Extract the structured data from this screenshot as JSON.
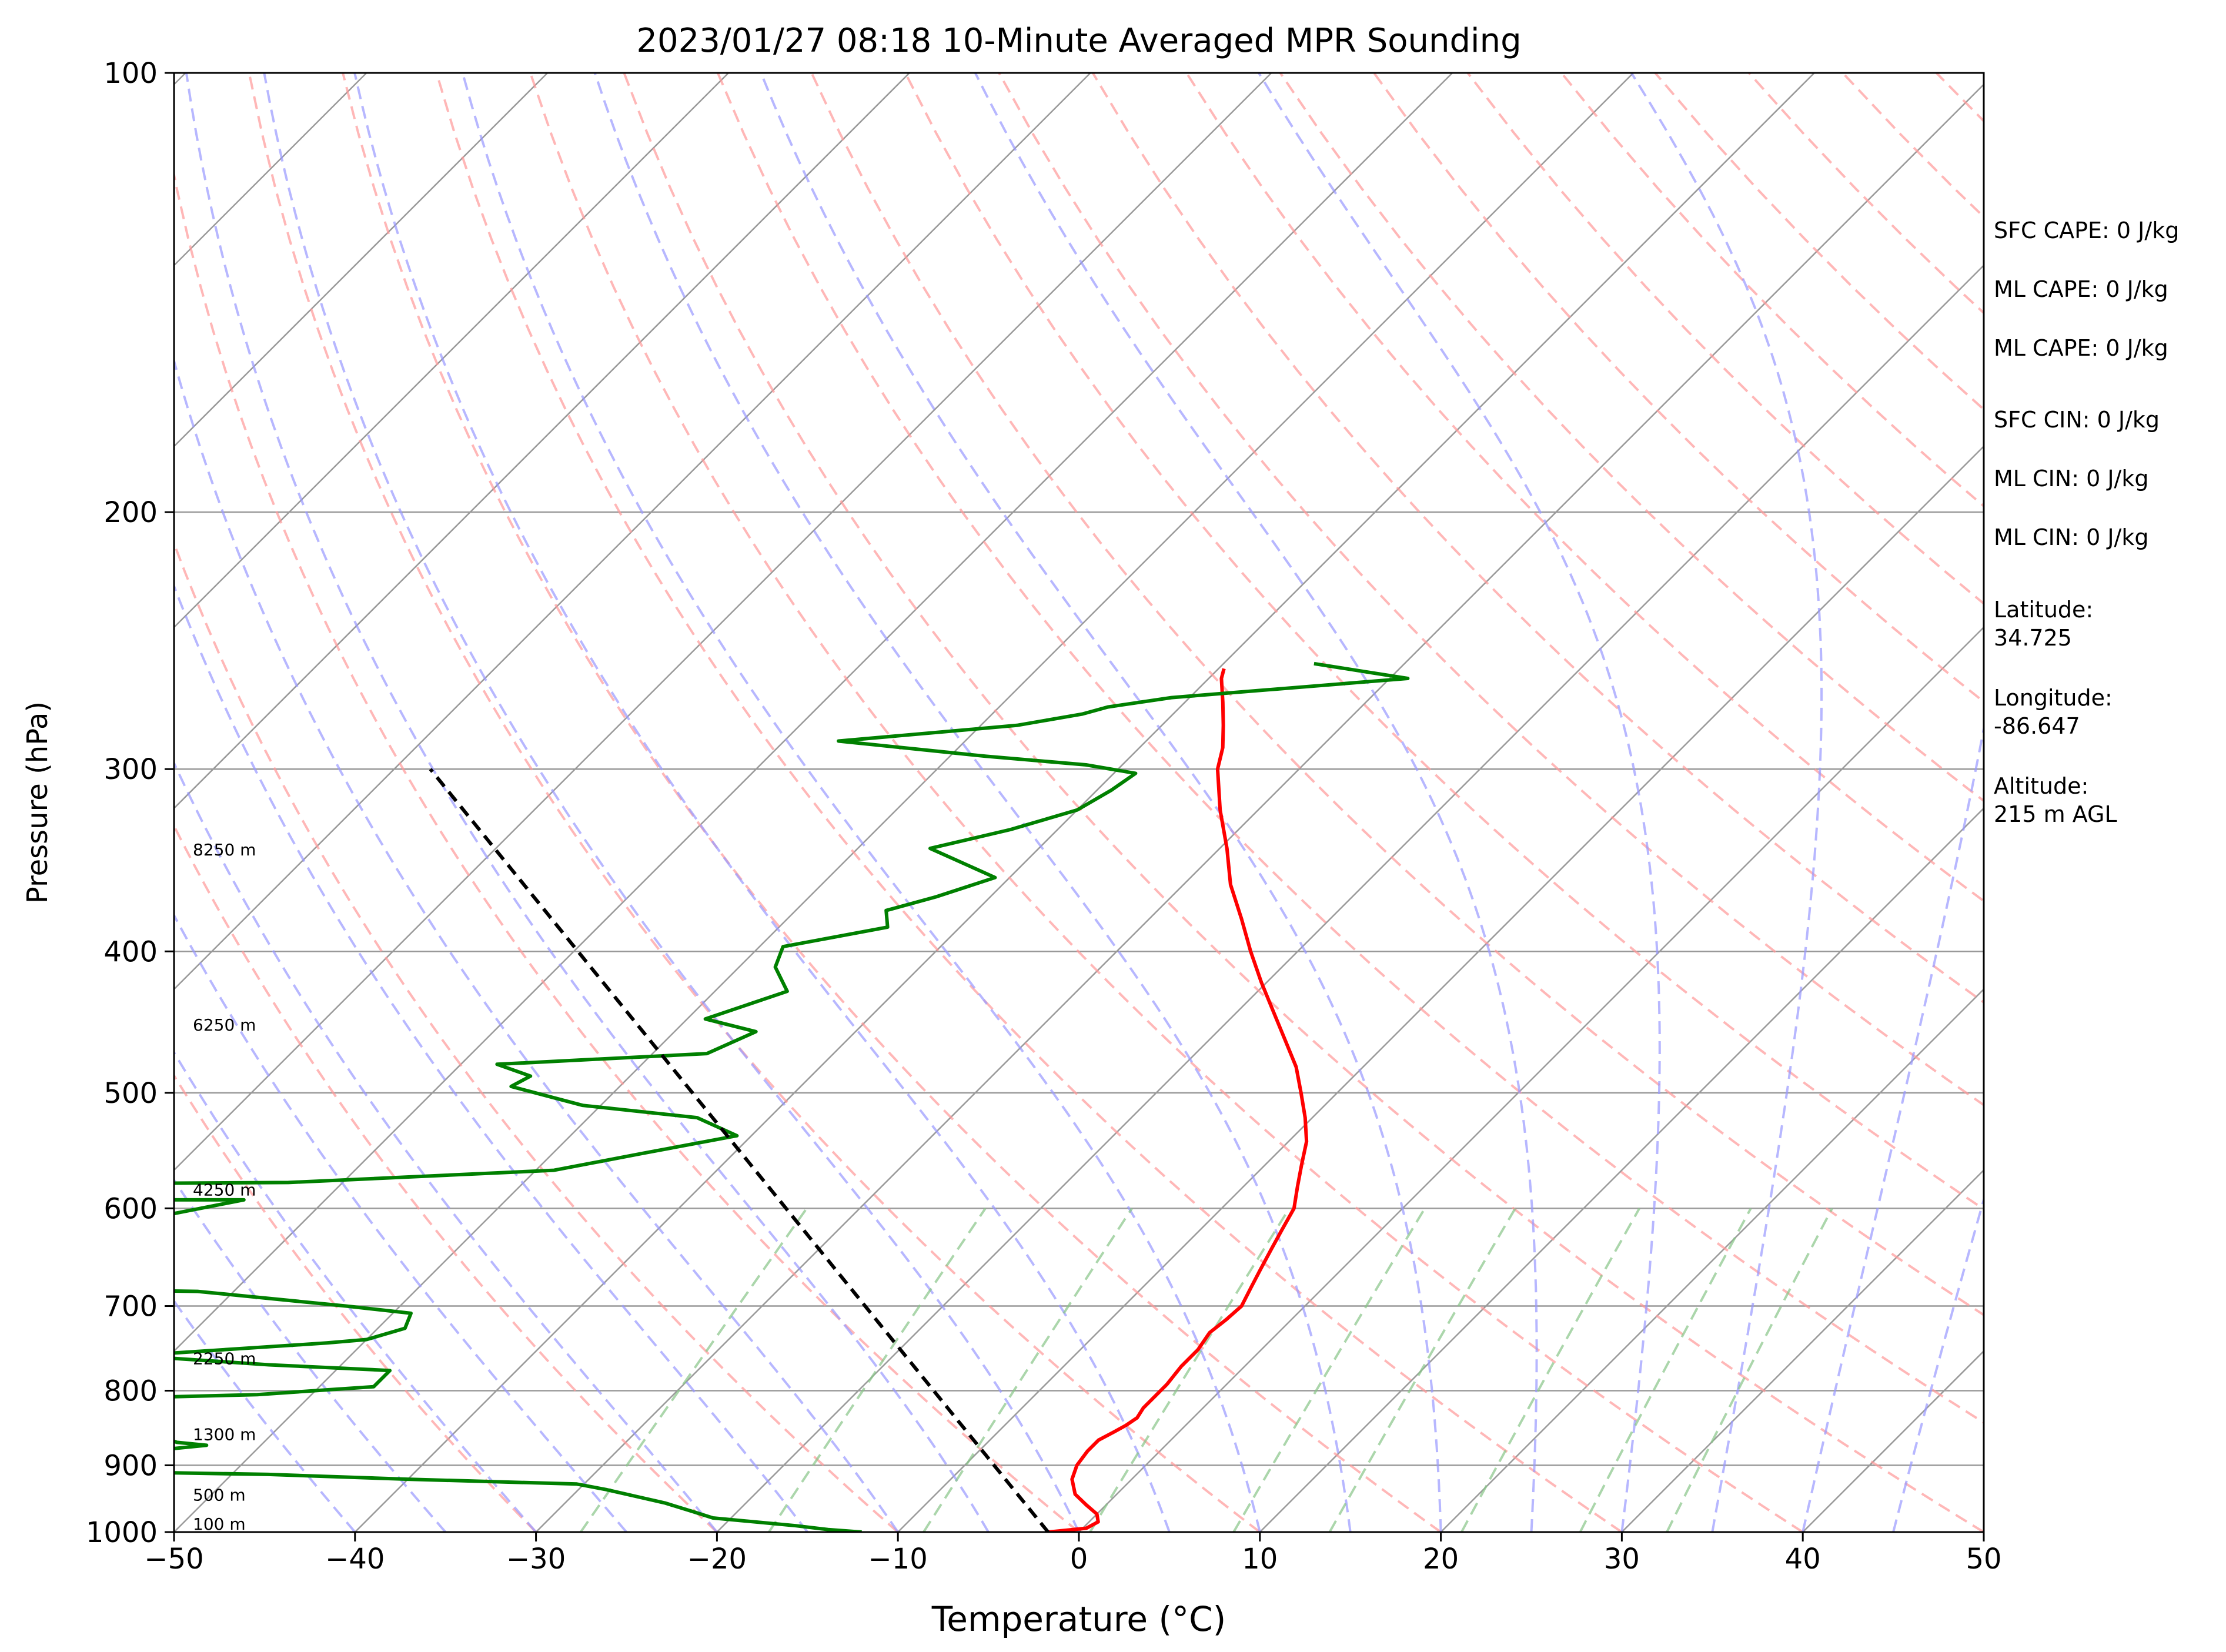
{
  "chart_data": {
    "type": "skew-t",
    "title": "2023/01/27 08:18 10-Minute Averaged MPR Sounding",
    "xlabel": "Temperature (°C)",
    "ylabel": "Pressure (hPa)",
    "xlim": [
      -50,
      50
    ],
    "ylim": [
      1000,
      100
    ],
    "y_scale": "log",
    "grid": true,
    "x_ticks": [
      "−50",
      "−40",
      "−30",
      "−20",
      "−10",
      "0",
      "10",
      "20",
      "30",
      "40",
      "50"
    ],
    "y_ticks": [
      "100",
      "200",
      "300",
      "400",
      "500",
      "600",
      "700",
      "800",
      "900",
      "1000"
    ],
    "height_labels": [
      {
        "label": "100 m",
        "p": 1000
      },
      {
        "label": "500 m",
        "p": 955
      },
      {
        "label": "1300 m",
        "p": 868
      },
      {
        "label": "2250 m",
        "p": 770
      },
      {
        "label": "4250 m",
        "p": 590
      },
      {
        "label": "6250 m",
        "p": 455
      },
      {
        "label": "8250 m",
        "p": 345
      }
    ],
    "series": [
      {
        "color": "#ff0000",
        "points": [
          [
            1000,
            -1.7
          ],
          [
            994,
            0.2
          ],
          [
            984,
            0.5
          ],
          [
            972,
            0
          ],
          [
            958,
            -1.1
          ],
          [
            942,
            -2.3
          ],
          [
            920,
            -3.3
          ],
          [
            900,
            -3.8
          ],
          [
            880,
            -4
          ],
          [
            865,
            -4
          ],
          [
            854,
            -3.6
          ],
          [
            845,
            -3.3
          ],
          [
            835,
            -3.1
          ],
          [
            822,
            -3.3
          ],
          [
            808,
            -3.3
          ],
          [
            792,
            -3.3
          ],
          [
            770,
            -3.5
          ],
          [
            750,
            -3.5
          ],
          [
            730,
            -3.8
          ],
          [
            715,
            -3.6
          ],
          [
            700,
            -3.5
          ],
          [
            680,
            -4
          ],
          [
            660,
            -4.5
          ],
          [
            640,
            -5
          ],
          [
            620,
            -5.5
          ],
          [
            600,
            -6
          ],
          [
            580,
            -7
          ],
          [
            560,
            -8
          ],
          [
            540,
            -9
          ],
          [
            520,
            -10.4
          ],
          [
            500,
            -12
          ],
          [
            480,
            -13.7
          ],
          [
            460,
            -15.8
          ],
          [
            440,
            -18
          ],
          [
            420,
            -20.3
          ],
          [
            400,
            -22.6
          ],
          [
            380,
            -24.9
          ],
          [
            360,
            -27.4
          ],
          [
            340,
            -29.6
          ],
          [
            320,
            -32.1
          ],
          [
            300,
            -34.5
          ],
          [
            290,
            -35.4
          ],
          [
            280,
            -36.6
          ],
          [
            270,
            -37.9
          ],
          [
            260,
            -39.3
          ],
          [
            256,
            -39.7
          ]
        ]
      },
      {
        "color": "#008000",
        "points": [
          [
            1000,
            -12
          ],
          [
            996,
            -14
          ],
          [
            990,
            -16
          ],
          [
            978,
            -21
          ],
          [
            968,
            -22.5
          ],
          [
            955,
            -24.5
          ],
          [
            945,
            -26.5
          ],
          [
            935,
            -28.5
          ],
          [
            927,
            -30.4
          ],
          [
            920,
            -40
          ],
          [
            913,
            -48
          ],
          [
            908,
            -60
          ],
          [
            890,
            -59.5
          ],
          [
            872,
            -53
          ],
          [
            868,
            -54.8
          ],
          [
            860,
            -56
          ],
          [
            845,
            -57
          ],
          [
            838,
            -58
          ],
          [
            822,
            -60.5
          ],
          [
            808,
            -58
          ],
          [
            805,
            -53
          ],
          [
            795,
            -47
          ],
          [
            775,
            -47
          ],
          [
            768,
            -54
          ],
          [
            757,
            -62
          ],
          [
            742,
            -52
          ],
          [
            738,
            -50
          ],
          [
            725,
            -48.5
          ],
          [
            708,
            -49
          ],
          [
            700,
            -53
          ],
          [
            684,
            -62
          ],
          [
            678,
            -84
          ],
          [
            592,
            -64.5
          ],
          [
            592,
            -85
          ],
          [
            578,
            -85
          ],
          [
            576,
            -63
          ],
          [
            565,
            -49
          ],
          [
            550,
            -45
          ],
          [
            535,
            -40.8
          ],
          [
            520,
            -44
          ],
          [
            510,
            -51
          ],
          [
            495,
            -56
          ],
          [
            487,
            -55.5
          ],
          [
            478,
            -58
          ],
          [
            470,
            -47
          ],
          [
            454,
            -45.5
          ],
          [
            445,
            -49
          ],
          [
            426,
            -46
          ],
          [
            410,
            -48
          ],
          [
            397,
            -48.7
          ],
          [
            385,
            -44
          ],
          [
            375,
            -45
          ],
          [
            367,
            -43
          ],
          [
            356,
            -40.8
          ],
          [
            340,
            -46
          ],
          [
            330,
            -42.6
          ],
          [
            320,
            -40
          ],
          [
            310,
            -39.2
          ],
          [
            302,
            -38.8
          ],
          [
            298,
            -42
          ],
          [
            294,
            -48
          ],
          [
            287,
            -57
          ],
          [
            280,
            -48
          ],
          [
            275,
            -45
          ],
          [
            272,
            -44
          ],
          [
            268,
            -41
          ],
          [
            260,
            -29
          ],
          [
            254,
            -35
          ]
        ]
      }
    ],
    "parcel": {
      "color": "#000000",
      "style": "dashed",
      "points": [
        [
          1000,
          -1.7
        ],
        [
          300,
          -78
        ]
      ]
    },
    "background_lines": {
      "dry_adiabat_color": "#ff9999",
      "moist_adiabat_color": "#9999ff",
      "mixing_ratio_color": "#88c488",
      "isotherm_color": "#999999",
      "isobar_color": "#999999"
    },
    "indices": [
      {
        "label": "SFC CAPE: 0 J/kg"
      },
      {
        "label": "ML CAPE: 0 J/kg"
      },
      {
        "label": "ML CAPE: 0 J/kg"
      },
      {
        "label": "SFC CIN: 0 J/kg"
      },
      {
        "label": "ML CIN: 0 J/kg"
      },
      {
        "label": "ML CIN: 0 J/kg"
      },
      {
        "label": "Latitude:\n34.725"
      },
      {
        "label": "Longitude:\n-86.647"
      },
      {
        "label": "Altitude:\n215 m AGL"
      }
    ]
  }
}
